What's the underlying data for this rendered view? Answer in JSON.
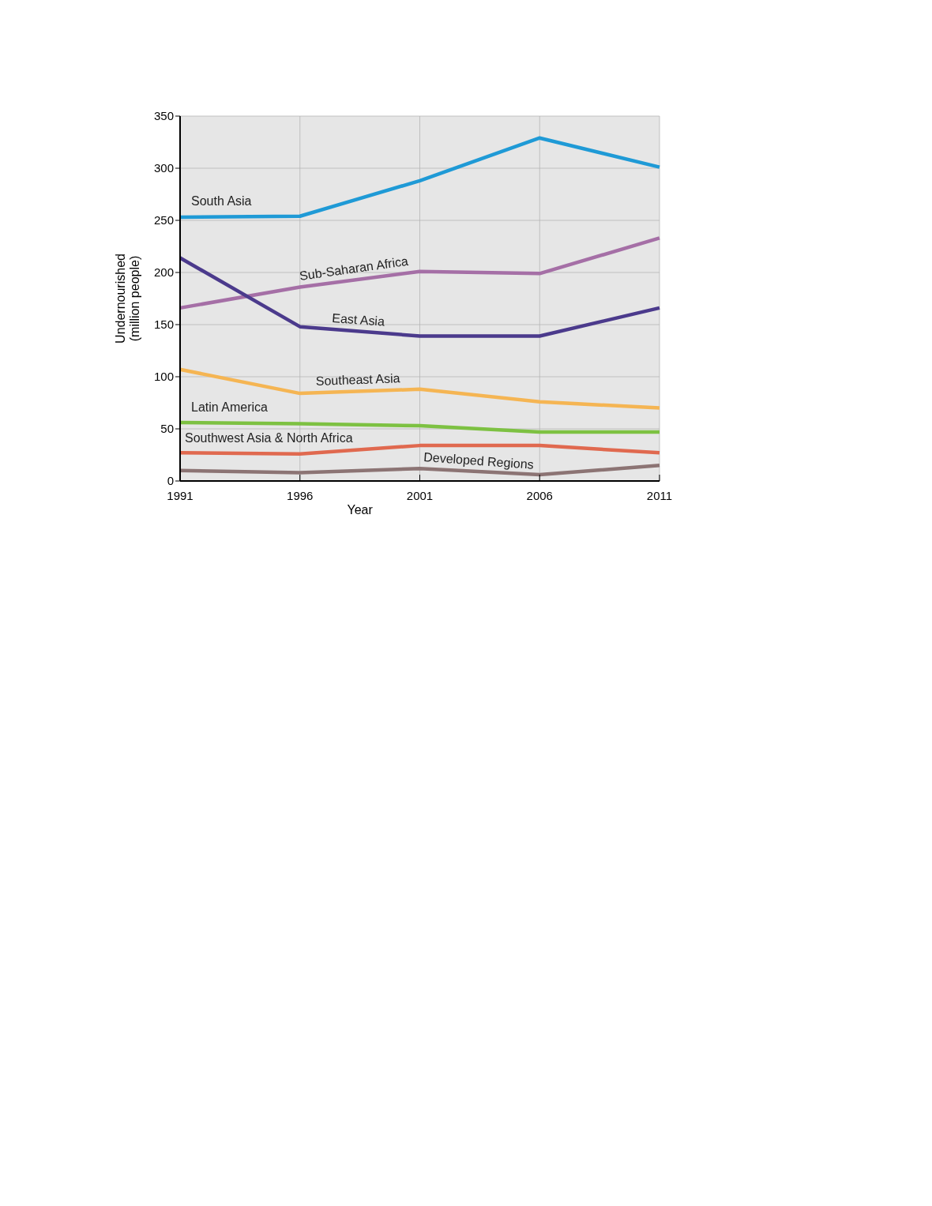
{
  "chart_data": {
    "type": "line",
    "xlabel": "Year",
    "ylabel": "Undernourished\n(million people)",
    "x": [
      1991,
      1996,
      2001,
      2006,
      2011
    ],
    "xlim": [
      1991,
      2011
    ],
    "xticks": [
      1991,
      1996,
      2001,
      2006,
      2011
    ],
    "ylim": [
      0,
      350
    ],
    "yticks": [
      0,
      50,
      100,
      150,
      200,
      250,
      300,
      350
    ],
    "grid": true,
    "marker": "none",
    "line_style": "solid",
    "series": [
      {
        "name": "South Asia",
        "color": "#1f9ad6",
        "values": [
          253,
          254,
          288,
          329,
          301
        ]
      },
      {
        "name": "Sub-Saharan Africa",
        "color": "#a56fa6",
        "values": [
          166,
          186,
          201,
          199,
          233
        ]
      },
      {
        "name": "East Asia",
        "color": "#4b3a8c",
        "values": [
          214,
          148,
          139,
          139,
          166
        ]
      },
      {
        "name": "Southeast Asia",
        "color": "#f5b553",
        "values": [
          107,
          84,
          88,
          76,
          70
        ]
      },
      {
        "name": "Latin America",
        "color": "#7dc142",
        "values": [
          56,
          55,
          53,
          47,
          47
        ]
      },
      {
        "name": "Southwest Asia & North Africa",
        "color": "#e0694f",
        "values": [
          27,
          26,
          34,
          34,
          27
        ]
      },
      {
        "name": "Developed Regions",
        "color": "#8c7474",
        "values": [
          10,
          8,
          12,
          6,
          15
        ]
      }
    ]
  }
}
